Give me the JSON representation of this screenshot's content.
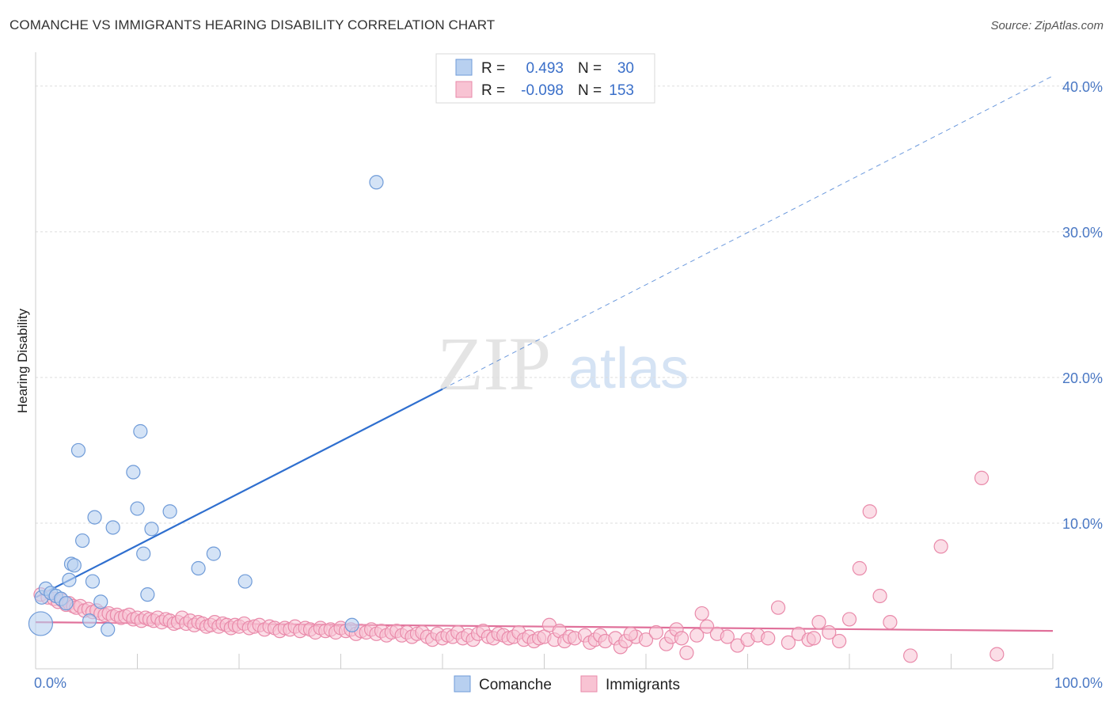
{
  "title": "COMANCHE VS IMMIGRANTS HEARING DISABILITY CORRELATION CHART",
  "source": "Source: ZipAtlas.com",
  "watermark": {
    "zip": "ZIP",
    "atlas": "atlas"
  },
  "colors": {
    "comanche_fill": "#b8d0f0",
    "comanche_stroke": "#6f9bd8",
    "comanche_line": "#2f6fcf",
    "immigrants_fill": "#f8c3d3",
    "immigrants_stroke": "#e98aaa",
    "immigrants_line": "#e0709a",
    "grid": "#dddddd",
    "tick_text": "#4a78c4"
  },
  "legend": {
    "rows": [
      {
        "r_label": "R =",
        "r_value": "0.493",
        "n_label": "N =",
        "n_value": "30"
      },
      {
        "r_label": "R =",
        "r_value": "-0.098",
        "n_label": "N =",
        "n_value": "153"
      }
    ]
  },
  "chart_data": {
    "type": "scatter",
    "title": "COMANCHE VS IMMIGRANTS HEARING DISABILITY CORRELATION CHART",
    "xlabel": "",
    "ylabel": "Hearing Disability",
    "xlim": [
      0,
      100
    ],
    "ylim": [
      0,
      42
    ],
    "x_tick_labels": [
      "0.0%",
      "100.0%"
    ],
    "y_ticks": [
      10,
      20,
      30,
      40
    ],
    "y_tick_labels": [
      "10.0%",
      "20.0%",
      "30.0%",
      "40.0%"
    ],
    "grid": true,
    "legend_position": "top-center",
    "series": [
      {
        "name": "Comanche",
        "r": 0.493,
        "n": 30,
        "trend": {
          "x": [
            0,
            40
          ],
          "y": [
            4.9,
            19.2
          ],
          "extend_dashed_to": [
            100,
            40.7
          ]
        },
        "points": [
          {
            "x": 0.5,
            "y": 3.1
          },
          {
            "x": 0.6,
            "y": 4.9
          },
          {
            "x": 1.0,
            "y": 5.5
          },
          {
            "x": 1.5,
            "y": 5.2
          },
          {
            "x": 2.0,
            "y": 5.0
          },
          {
            "x": 2.5,
            "y": 4.8
          },
          {
            "x": 3.0,
            "y": 4.5
          },
          {
            "x": 3.3,
            "y": 6.1
          },
          {
            "x": 3.5,
            "y": 7.2
          },
          {
            "x": 3.8,
            "y": 7.1
          },
          {
            "x": 4.2,
            "y": 15.0
          },
          {
            "x": 4.6,
            "y": 8.8
          },
          {
            "x": 5.3,
            "y": 3.3
          },
          {
            "x": 5.6,
            "y": 6.0
          },
          {
            "x": 5.8,
            "y": 10.4
          },
          {
            "x": 6.4,
            "y": 4.6
          },
          {
            "x": 7.1,
            "y": 2.7
          },
          {
            "x": 7.6,
            "y": 9.7
          },
          {
            "x": 9.6,
            "y": 13.5
          },
          {
            "x": 10.0,
            "y": 11.0
          },
          {
            "x": 10.3,
            "y": 16.3
          },
          {
            "x": 10.6,
            "y": 7.9
          },
          {
            "x": 11.0,
            "y": 5.1
          },
          {
            "x": 11.4,
            "y": 9.6
          },
          {
            "x": 13.2,
            "y": 10.8
          },
          {
            "x": 16.0,
            "y": 6.9
          },
          {
            "x": 17.5,
            "y": 7.9
          },
          {
            "x": 20.6,
            "y": 6.0
          },
          {
            "x": 31.1,
            "y": 3.0
          },
          {
            "x": 33.5,
            "y": 33.4
          }
        ]
      },
      {
        "name": "Immigrants",
        "r": -0.098,
        "n": 153,
        "trend": {
          "x": [
            0,
            100
          ],
          "y": [
            3.2,
            2.6
          ]
        },
        "points": [
          {
            "x": 0.5,
            "y": 5.1
          },
          {
            "x": 1.2,
            "y": 4.9
          },
          {
            "x": 1.8,
            "y": 4.8
          },
          {
            "x": 2.2,
            "y": 4.6
          },
          {
            "x": 2.6,
            "y": 4.7
          },
          {
            "x": 3.0,
            "y": 4.4
          },
          {
            "x": 3.3,
            "y": 4.5
          },
          {
            "x": 3.7,
            "y": 4.3
          },
          {
            "x": 4.0,
            "y": 4.2
          },
          {
            "x": 4.4,
            "y": 4.3
          },
          {
            "x": 4.8,
            "y": 4.0
          },
          {
            "x": 5.2,
            "y": 4.1
          },
          {
            "x": 5.6,
            "y": 3.9
          },
          {
            "x": 6.0,
            "y": 4.0
          },
          {
            "x": 6.4,
            "y": 3.8
          },
          {
            "x": 6.8,
            "y": 3.7
          },
          {
            "x": 7.2,
            "y": 3.8
          },
          {
            "x": 7.6,
            "y": 3.6
          },
          {
            "x": 8.0,
            "y": 3.7
          },
          {
            "x": 8.4,
            "y": 3.5
          },
          {
            "x": 8.8,
            "y": 3.6
          },
          {
            "x": 9.2,
            "y": 3.7
          },
          {
            "x": 9.6,
            "y": 3.4
          },
          {
            "x": 10.0,
            "y": 3.5
          },
          {
            "x": 10.4,
            "y": 3.3
          },
          {
            "x": 10.8,
            "y": 3.5
          },
          {
            "x": 11.2,
            "y": 3.4
          },
          {
            "x": 11.6,
            "y": 3.3
          },
          {
            "x": 12.0,
            "y": 3.5
          },
          {
            "x": 12.4,
            "y": 3.2
          },
          {
            "x": 12.8,
            "y": 3.4
          },
          {
            "x": 13.2,
            "y": 3.3
          },
          {
            "x": 13.6,
            "y": 3.1
          },
          {
            "x": 14.0,
            "y": 3.2
          },
          {
            "x": 14.4,
            "y": 3.5
          },
          {
            "x": 14.8,
            "y": 3.1
          },
          {
            "x": 15.2,
            "y": 3.3
          },
          {
            "x": 15.6,
            "y": 3.0
          },
          {
            "x": 16.0,
            "y": 3.2
          },
          {
            "x": 16.4,
            "y": 3.1
          },
          {
            "x": 16.8,
            "y": 2.9
          },
          {
            "x": 17.2,
            "y": 3.0
          },
          {
            "x": 17.6,
            "y": 3.2
          },
          {
            "x": 18.0,
            "y": 2.9
          },
          {
            "x": 18.4,
            "y": 3.1
          },
          {
            "x": 18.8,
            "y": 3.0
          },
          {
            "x": 19.2,
            "y": 2.8
          },
          {
            "x": 19.6,
            "y": 3.0
          },
          {
            "x": 20.0,
            "y": 2.9
          },
          {
            "x": 20.5,
            "y": 3.1
          },
          {
            "x": 21.0,
            "y": 2.8
          },
          {
            "x": 21.5,
            "y": 2.9
          },
          {
            "x": 22.0,
            "y": 3.0
          },
          {
            "x": 22.5,
            "y": 2.7
          },
          {
            "x": 23.0,
            "y": 2.9
          },
          {
            "x": 23.5,
            "y": 2.8
          },
          {
            "x": 24.0,
            "y": 2.6
          },
          {
            "x": 24.5,
            "y": 2.8
          },
          {
            "x": 25.0,
            "y": 2.7
          },
          {
            "x": 25.5,
            "y": 2.9
          },
          {
            "x": 26.0,
            "y": 2.6
          },
          {
            "x": 26.5,
            "y": 2.8
          },
          {
            "x": 27.0,
            "y": 2.7
          },
          {
            "x": 27.5,
            "y": 2.5
          },
          {
            "x": 28.0,
            "y": 2.8
          },
          {
            "x": 28.5,
            "y": 2.6
          },
          {
            "x": 29.0,
            "y": 2.7
          },
          {
            "x": 29.5,
            "y": 2.5
          },
          {
            "x": 30.0,
            "y": 2.8
          },
          {
            "x": 30.5,
            "y": 2.6
          },
          {
            "x": 31.0,
            "y": 2.7
          },
          {
            "x": 31.5,
            "y": 2.4
          },
          {
            "x": 32.0,
            "y": 2.6
          },
          {
            "x": 32.5,
            "y": 2.5
          },
          {
            "x": 33.0,
            "y": 2.7
          },
          {
            "x": 33.5,
            "y": 2.4
          },
          {
            "x": 34.0,
            "y": 2.6
          },
          {
            "x": 34.5,
            "y": 2.3
          },
          {
            "x": 35.0,
            "y": 2.5
          },
          {
            "x": 35.5,
            "y": 2.6
          },
          {
            "x": 36.0,
            "y": 2.3
          },
          {
            "x": 36.5,
            "y": 2.5
          },
          {
            "x": 37.0,
            "y": 2.2
          },
          {
            "x": 37.5,
            "y": 2.4
          },
          {
            "x": 38.0,
            "y": 2.5
          },
          {
            "x": 38.5,
            "y": 2.2
          },
          {
            "x": 39.0,
            "y": 2.0
          },
          {
            "x": 39.5,
            "y": 2.4
          },
          {
            "x": 40.0,
            "y": 2.1
          },
          {
            "x": 40.5,
            "y": 2.3
          },
          {
            "x": 41.0,
            "y": 2.2
          },
          {
            "x": 41.5,
            "y": 2.5
          },
          {
            "x": 42.0,
            "y": 2.1
          },
          {
            "x": 42.5,
            "y": 2.3
          },
          {
            "x": 43.0,
            "y": 2.0
          },
          {
            "x": 43.5,
            "y": 2.4
          },
          {
            "x": 44.0,
            "y": 2.6
          },
          {
            "x": 44.5,
            "y": 2.2
          },
          {
            "x": 45.0,
            "y": 2.1
          },
          {
            "x": 45.5,
            "y": 2.4
          },
          {
            "x": 46.0,
            "y": 2.3
          },
          {
            "x": 46.5,
            "y": 2.1
          },
          {
            "x": 47.0,
            "y": 2.2
          },
          {
            "x": 47.5,
            "y": 2.5
          },
          {
            "x": 48.0,
            "y": 2.0
          },
          {
            "x": 48.5,
            "y": 2.2
          },
          {
            "x": 49.0,
            "y": 1.9
          },
          {
            "x": 49.5,
            "y": 2.1
          },
          {
            "x": 50.0,
            "y": 2.2
          },
          {
            "x": 50.5,
            "y": 3.0
          },
          {
            "x": 51.0,
            "y": 2.0
          },
          {
            "x": 51.5,
            "y": 2.6
          },
          {
            "x": 52.0,
            "y": 1.9
          },
          {
            "x": 52.5,
            "y": 2.2
          },
          {
            "x": 53.0,
            "y": 2.1
          },
          {
            "x": 54.0,
            "y": 2.3
          },
          {
            "x": 54.5,
            "y": 1.8
          },
          {
            "x": 55.0,
            "y": 2.0
          },
          {
            "x": 55.5,
            "y": 2.3
          },
          {
            "x": 56.0,
            "y": 1.9
          },
          {
            "x": 57.0,
            "y": 2.1
          },
          {
            "x": 57.5,
            "y": 1.5
          },
          {
            "x": 58.0,
            "y": 1.9
          },
          {
            "x": 59.0,
            "y": 2.2
          },
          {
            "x": 60.0,
            "y": 2.0
          },
          {
            "x": 61.0,
            "y": 2.5
          },
          {
            "x": 62.0,
            "y": 1.7
          },
          {
            "x": 62.5,
            "y": 2.2
          },
          {
            "x": 63.0,
            "y": 2.7
          },
          {
            "x": 63.5,
            "y": 2.1
          },
          {
            "x": 65.0,
            "y": 2.3
          },
          {
            "x": 65.5,
            "y": 3.8
          },
          {
            "x": 66.0,
            "y": 2.9
          },
          {
            "x": 67.0,
            "y": 2.4
          },
          {
            "x": 68.0,
            "y": 2.2
          },
          {
            "x": 69.0,
            "y": 1.6
          },
          {
            "x": 70.0,
            "y": 2.0
          },
          {
            "x": 71.0,
            "y": 2.3
          },
          {
            "x": 72.0,
            "y": 2.1
          },
          {
            "x": 73.0,
            "y": 4.2
          },
          {
            "x": 74.0,
            "y": 1.8
          },
          {
            "x": 75.0,
            "y": 2.4
          },
          {
            "x": 76.0,
            "y": 2.0
          },
          {
            "x": 77.0,
            "y": 3.2
          },
          {
            "x": 78.0,
            "y": 2.5
          },
          {
            "x": 79.0,
            "y": 1.9
          },
          {
            "x": 80.0,
            "y": 3.4
          },
          {
            "x": 81.0,
            "y": 6.9
          },
          {
            "x": 82.0,
            "y": 10.8
          },
          {
            "x": 83.0,
            "y": 5.0
          },
          {
            "x": 84.0,
            "y": 3.2
          },
          {
            "x": 86.0,
            "y": 0.9
          },
          {
            "x": 89.0,
            "y": 8.4
          },
          {
            "x": 93.0,
            "y": 13.1
          },
          {
            "x": 94.5,
            "y": 1.0
          },
          {
            "x": 76.5,
            "y": 2.1
          },
          {
            "x": 64.0,
            "y": 1.1
          },
          {
            "x": 58.5,
            "y": 2.4
          }
        ]
      }
    ]
  }
}
